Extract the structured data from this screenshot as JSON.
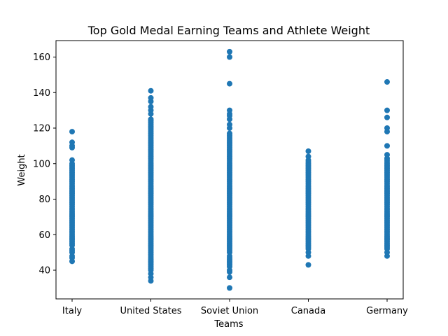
{
  "chart_data": {
    "type": "scatter",
    "title": "Top Gold Medal Earning Teams and Athlete Weight",
    "xlabel": "Teams",
    "ylabel": "Weight",
    "categories": [
      "Italy",
      "United States",
      "Soviet Union",
      "Canada",
      "Germany"
    ],
    "ylim": [
      23,
      170
    ],
    "yticks": [
      40,
      60,
      80,
      100,
      120,
      140,
      160
    ],
    "grid": false,
    "legend": "none",
    "color": "#1f77b4",
    "series": [
      {
        "category": "Italy",
        "values": [
          45,
          47,
          48,
          50,
          51,
          52,
          54,
          55,
          56,
          57,
          58,
          59,
          60,
          61,
          62,
          63,
          64,
          65,
          66,
          67,
          68,
          69,
          70,
          71,
          72,
          73,
          74,
          75,
          76,
          77,
          78,
          79,
          80,
          81,
          82,
          83,
          84,
          85,
          86,
          87,
          88,
          89,
          90,
          91,
          92,
          93,
          94,
          95,
          96,
          97,
          98,
          99,
          100,
          102,
          109,
          110,
          112,
          118
        ]
      },
      {
        "category": "United States",
        "values": [
          34,
          36,
          38,
          40,
          41,
          42,
          43,
          44,
          45,
          46,
          47,
          48,
          49,
          50,
          51,
          52,
          53,
          54,
          55,
          56,
          57,
          58,
          59,
          60,
          61,
          62,
          63,
          64,
          65,
          66,
          67,
          68,
          69,
          70,
          71,
          72,
          73,
          74,
          75,
          76,
          77,
          78,
          79,
          80,
          81,
          82,
          83,
          84,
          85,
          86,
          87,
          88,
          89,
          90,
          91,
          92,
          93,
          94,
          95,
          96,
          97,
          98,
          99,
          100,
          101,
          102,
          103,
          104,
          105,
          106,
          107,
          108,
          109,
          110,
          111,
          112,
          113,
          114,
          115,
          116,
          117,
          118,
          119,
          120,
          121,
          122,
          123,
          124,
          125,
          128,
          130,
          132,
          135,
          137,
          141
        ]
      },
      {
        "category": "Soviet Union",
        "values": [
          30,
          36,
          39,
          40,
          42,
          43,
          44,
          45,
          46,
          47,
          48,
          50,
          51,
          52,
          53,
          54,
          55,
          56,
          57,
          58,
          59,
          60,
          61,
          62,
          63,
          64,
          65,
          66,
          67,
          68,
          69,
          70,
          71,
          72,
          73,
          74,
          75,
          76,
          77,
          78,
          79,
          80,
          81,
          82,
          83,
          84,
          85,
          86,
          87,
          88,
          89,
          90,
          91,
          92,
          93,
          94,
          95,
          96,
          97,
          98,
          99,
          100,
          101,
          102,
          103,
          104,
          105,
          106,
          107,
          108,
          109,
          110,
          111,
          112,
          113,
          114,
          115,
          116,
          117,
          120,
          122,
          125,
          127,
          128,
          130,
          145,
          160,
          163
        ]
      },
      {
        "category": "Canada",
        "values": [
          43,
          48,
          50,
          52,
          53,
          54,
          55,
          56,
          57,
          58,
          59,
          60,
          61,
          62,
          63,
          64,
          65,
          66,
          67,
          68,
          69,
          70,
          71,
          72,
          73,
          74,
          75,
          76,
          77,
          78,
          79,
          80,
          81,
          82,
          83,
          84,
          85,
          86,
          87,
          88,
          89,
          90,
          91,
          92,
          93,
          94,
          95,
          96,
          97,
          98,
          99,
          100,
          101,
          102,
          104,
          107
        ]
      },
      {
        "category": "Germany",
        "values": [
          48,
          50,
          52,
          53,
          54,
          55,
          56,
          57,
          58,
          59,
          60,
          61,
          62,
          63,
          64,
          65,
          66,
          67,
          68,
          69,
          70,
          71,
          72,
          73,
          74,
          75,
          76,
          77,
          78,
          79,
          80,
          81,
          82,
          83,
          84,
          85,
          86,
          87,
          88,
          89,
          90,
          91,
          92,
          93,
          94,
          95,
          96,
          97,
          98,
          99,
          100,
          101,
          102,
          103,
          105,
          110,
          118,
          120,
          126,
          130,
          146
        ]
      }
    ]
  }
}
